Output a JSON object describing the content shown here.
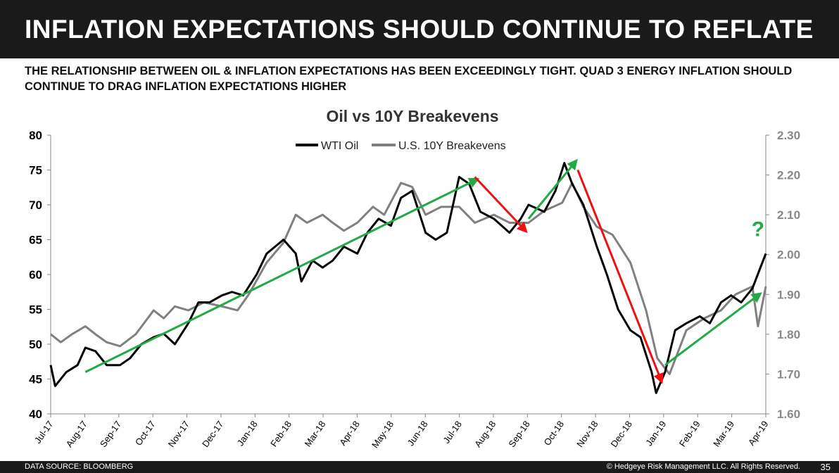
{
  "header": {
    "title": "INFLATION EXPECTATIONS SHOULD CONTINUE TO REFLATE",
    "subtitle": "THE RELATIONSHIP BETWEEN OIL & INFLATION EXPECTATIONS HAS BEEN EXCEEDINGLY TIGHT.  QUAD 3 ENERGY INFLATION SHOULD CONTINUE TO DRAG INFLATION EXPECTATIONS HIGHER"
  },
  "footer": {
    "source": "DATA SOURCE: BLOOMBERG",
    "copyright": "© Hedgeye Risk Management LLC. All Rights Reserved.",
    "page": "35"
  },
  "chart_data": {
    "type": "line",
    "title": "Oil vs 10Y Breakevens",
    "legend_position": "top-center",
    "grid": false,
    "x_range": [
      "2017-07-01",
      "2019-04-01"
    ],
    "x_tick_labels": [
      "Jul-17",
      "Aug-17",
      "Sep-17",
      "Oct-17",
      "Nov-17",
      "Dec-17",
      "Jan-18",
      "Feb-18",
      "Mar-18",
      "Apr-18",
      "May-18",
      "Jun-18",
      "Jul-18",
      "Aug-18",
      "Sep-18",
      "Oct-18",
      "Nov-18",
      "Dec-18",
      "Jan-19",
      "Feb-19",
      "Mar-19",
      "Apr-19"
    ],
    "y_left": {
      "range": [
        40,
        80
      ],
      "ticks": [
        "40",
        "45",
        "50",
        "55",
        "60",
        "65",
        "70",
        "75",
        "80"
      ]
    },
    "y_right": {
      "range": [
        1.6,
        2.3
      ],
      "ticks": [
        "1.60",
        "1.70",
        "1.80",
        "1.90",
        "2.00",
        "2.10",
        "2.20",
        "2.30"
      ]
    },
    "series": [
      {
        "name": "WTI Oil",
        "axis": "left",
        "color": "#000000",
        "points": [
          [
            "2017-07-01",
            47
          ],
          [
            "2017-07-05",
            44
          ],
          [
            "2017-07-15",
            46
          ],
          [
            "2017-07-25",
            47
          ],
          [
            "2017-08-01",
            49.5
          ],
          [
            "2017-08-10",
            49
          ],
          [
            "2017-08-20",
            47
          ],
          [
            "2017-09-01",
            47
          ],
          [
            "2017-09-10",
            48
          ],
          [
            "2017-09-20",
            50
          ],
          [
            "2017-10-01",
            51
          ],
          [
            "2017-10-10",
            51.5
          ],
          [
            "2017-10-20",
            50
          ],
          [
            "2017-11-01",
            53
          ],
          [
            "2017-11-10",
            56
          ],
          [
            "2017-11-20",
            56
          ],
          [
            "2017-12-01",
            57
          ],
          [
            "2017-12-10",
            57.5
          ],
          [
            "2017-12-20",
            57
          ],
          [
            "2018-01-01",
            60
          ],
          [
            "2018-01-10",
            63
          ],
          [
            "2018-01-25",
            65
          ],
          [
            "2018-02-05",
            63
          ],
          [
            "2018-02-10",
            59
          ],
          [
            "2018-02-20",
            62
          ],
          [
            "2018-03-01",
            61
          ],
          [
            "2018-03-10",
            62
          ],
          [
            "2018-03-20",
            64
          ],
          [
            "2018-04-01",
            63
          ],
          [
            "2018-04-10",
            66
          ],
          [
            "2018-04-20",
            68
          ],
          [
            "2018-05-01",
            67
          ],
          [
            "2018-05-10",
            71
          ],
          [
            "2018-05-20",
            72
          ],
          [
            "2018-06-01",
            66
          ],
          [
            "2018-06-10",
            65
          ],
          [
            "2018-06-20",
            66
          ],
          [
            "2018-07-01",
            74
          ],
          [
            "2018-07-10",
            73
          ],
          [
            "2018-07-20",
            69
          ],
          [
            "2018-08-01",
            68
          ],
          [
            "2018-08-15",
            66
          ],
          [
            "2018-08-25",
            68
          ],
          [
            "2018-09-01",
            70
          ],
          [
            "2018-09-15",
            69
          ],
          [
            "2018-09-25",
            72
          ],
          [
            "2018-10-03",
            76
          ],
          [
            "2018-10-10",
            73
          ],
          [
            "2018-10-20",
            70
          ],
          [
            "2018-11-01",
            64
          ],
          [
            "2018-11-10",
            60
          ],
          [
            "2018-11-20",
            55
          ],
          [
            "2018-12-01",
            52
          ],
          [
            "2018-12-10",
            51
          ],
          [
            "2018-12-20",
            46
          ],
          [
            "2018-12-24",
            43
          ],
          [
            "2019-01-01",
            46
          ],
          [
            "2019-01-10",
            52
          ],
          [
            "2019-01-20",
            53
          ],
          [
            "2019-02-01",
            54
          ],
          [
            "2019-02-10",
            53
          ],
          [
            "2019-02-20",
            56
          ],
          [
            "2019-03-01",
            57
          ],
          [
            "2019-03-10",
            56
          ],
          [
            "2019-03-20",
            58
          ],
          [
            "2019-04-01",
            63
          ]
        ]
      },
      {
        "name": "U.S. 10Y Breakevens",
        "axis": "right",
        "color": "#808080",
        "points": [
          [
            "2017-07-01",
            1.8
          ],
          [
            "2017-07-10",
            1.78
          ],
          [
            "2017-07-20",
            1.8
          ],
          [
            "2017-08-01",
            1.82
          ],
          [
            "2017-08-10",
            1.8
          ],
          [
            "2017-08-20",
            1.78
          ],
          [
            "2017-09-01",
            1.77
          ],
          [
            "2017-09-15",
            1.8
          ],
          [
            "2017-10-01",
            1.86
          ],
          [
            "2017-10-10",
            1.84
          ],
          [
            "2017-10-20",
            1.87
          ],
          [
            "2017-11-01",
            1.86
          ],
          [
            "2017-11-15",
            1.88
          ],
          [
            "2017-12-01",
            1.87
          ],
          [
            "2017-12-15",
            1.86
          ],
          [
            "2017-12-25",
            1.9
          ],
          [
            "2018-01-10",
            1.98
          ],
          [
            "2018-01-25",
            2.03
          ],
          [
            "2018-02-05",
            2.1
          ],
          [
            "2018-02-15",
            2.08
          ],
          [
            "2018-03-01",
            2.1
          ],
          [
            "2018-03-10",
            2.08
          ],
          [
            "2018-03-20",
            2.06
          ],
          [
            "2018-04-01",
            2.08
          ],
          [
            "2018-04-15",
            2.12
          ],
          [
            "2018-04-25",
            2.1
          ],
          [
            "2018-05-10",
            2.18
          ],
          [
            "2018-05-20",
            2.17
          ],
          [
            "2018-06-01",
            2.1
          ],
          [
            "2018-06-15",
            2.12
          ],
          [
            "2018-07-01",
            2.12
          ],
          [
            "2018-07-15",
            2.08
          ],
          [
            "2018-08-01",
            2.1
          ],
          [
            "2018-08-15",
            2.08
          ],
          [
            "2018-09-01",
            2.08
          ],
          [
            "2018-09-15",
            2.11
          ],
          [
            "2018-10-01",
            2.13
          ],
          [
            "2018-10-10",
            2.18
          ],
          [
            "2018-10-20",
            2.12
          ],
          [
            "2018-11-01",
            2.07
          ],
          [
            "2018-11-15",
            2.05
          ],
          [
            "2018-12-01",
            1.98
          ],
          [
            "2018-12-15",
            1.86
          ],
          [
            "2018-12-25",
            1.74
          ],
          [
            "2019-01-05",
            1.7
          ],
          [
            "2019-01-20",
            1.81
          ],
          [
            "2019-02-05",
            1.84
          ],
          [
            "2019-02-20",
            1.86
          ],
          [
            "2019-03-05",
            1.9
          ],
          [
            "2019-03-20",
            1.92
          ],
          [
            "2019-03-25",
            1.82
          ],
          [
            "2019-04-01",
            1.92
          ]
        ]
      }
    ],
    "annotations": {
      "arrows": [
        {
          "color": "#22aa44",
          "from": [
            "2017-08-01",
            46
          ],
          "to": [
            "2018-07-15",
            73.5
          ]
        },
        {
          "color": "#ee1111",
          "from": [
            "2018-07-15",
            74
          ],
          "to": [
            "2018-08-28",
            66.5
          ]
        },
        {
          "color": "#22aa44",
          "from": [
            "2018-09-01",
            68
          ],
          "to": [
            "2018-10-12",
            76
          ]
        },
        {
          "color": "#ee1111",
          "from": [
            "2018-10-15",
            75
          ],
          "to": [
            "2018-12-28",
            45
          ]
        },
        {
          "color": "#22aa44",
          "from": [
            "2019-01-01",
            47
          ],
          "to": [
            "2019-03-25",
            57
          ]
        }
      ],
      "question": {
        "text": "?",
        "color": "#22aa44",
        "at": [
          "2019-03-25",
          65.5
        ]
      }
    }
  }
}
